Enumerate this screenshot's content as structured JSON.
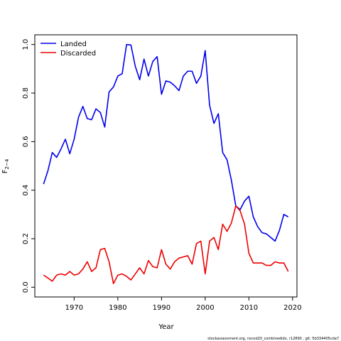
{
  "chart_data": {
    "type": "line",
    "xlabel": "Year",
    "ylabel": "F",
    "ylabel_subscript": "2−4",
    "xlim": [
      1961,
      2021
    ],
    "ylim": [
      -0.04,
      1.04
    ],
    "x_ticks": [
      1970,
      1980,
      1990,
      2000,
      2010,
      2020
    ],
    "y_ticks": [
      0.0,
      0.2,
      0.4,
      0.6,
      0.8,
      1.0
    ],
    "x_tick_labels": [
      "1970",
      "1980",
      "1990",
      "2000",
      "2010",
      "2020"
    ],
    "y_tick_labels": [
      "0.0",
      "0.2",
      "0.4",
      "0.6",
      "0.8",
      "1.0"
    ],
    "legend_position": "top-left",
    "grid": false,
    "x": [
      1963,
      1964,
      1965,
      1966,
      1967,
      1968,
      1969,
      1970,
      1971,
      1972,
      1973,
      1974,
      1975,
      1976,
      1977,
      1978,
      1979,
      1980,
      1981,
      1982,
      1983,
      1984,
      1985,
      1986,
      1987,
      1988,
      1989,
      1990,
      1991,
      1992,
      1993,
      1994,
      1995,
      1996,
      1997,
      1998,
      1999,
      2000,
      2001,
      2002,
      2003,
      2004,
      2005,
      2006,
      2007,
      2008,
      2009,
      2010,
      2011,
      2012,
      2013,
      2014,
      2015,
      2016,
      2017,
      2018,
      2019
    ],
    "series": [
      {
        "name": "Landed",
        "color": "#0000ee",
        "values": [
          0.425,
          0.48,
          0.555,
          0.535,
          0.57,
          0.61,
          0.55,
          0.61,
          0.7,
          0.745,
          0.695,
          0.69,
          0.735,
          0.72,
          0.66,
          0.805,
          0.825,
          0.87,
          0.88,
          1.0,
          0.998,
          0.91,
          0.855,
          0.94,
          0.87,
          0.93,
          0.95,
          0.795,
          0.85,
          0.845,
          0.83,
          0.81,
          0.87,
          0.89,
          0.89,
          0.84,
          0.87,
          0.975,
          0.75,
          0.675,
          0.715,
          0.555,
          0.525,
          0.44,
          0.335,
          0.32,
          0.355,
          0.375,
          0.29,
          0.25,
          0.225,
          0.22,
          0.205,
          0.19,
          0.235,
          0.3,
          0.29
        ]
      },
      {
        "name": "Discarded",
        "color": "#ee0000",
        "values": [
          0.05,
          0.038,
          0.025,
          0.05,
          0.055,
          0.05,
          0.065,
          0.05,
          0.055,
          0.075,
          0.105,
          0.065,
          0.08,
          0.155,
          0.16,
          0.105,
          0.015,
          0.05,
          0.055,
          0.045,
          0.03,
          0.055,
          0.08,
          0.055,
          0.11,
          0.085,
          0.08,
          0.155,
          0.095,
          0.075,
          0.105,
          0.12,
          0.125,
          0.13,
          0.095,
          0.18,
          0.19,
          0.055,
          0.19,
          0.205,
          0.155,
          0.26,
          0.23,
          0.265,
          0.335,
          0.315,
          0.26,
          0.14,
          0.1,
          0.1,
          0.1,
          0.09,
          0.09,
          0.105,
          0.1,
          0.1,
          0.065
        ]
      }
    ]
  },
  "footer_text": "stockassessment.org,  nscod20_combinedidx,  r12890 ,  git: 5b334405cda7"
}
